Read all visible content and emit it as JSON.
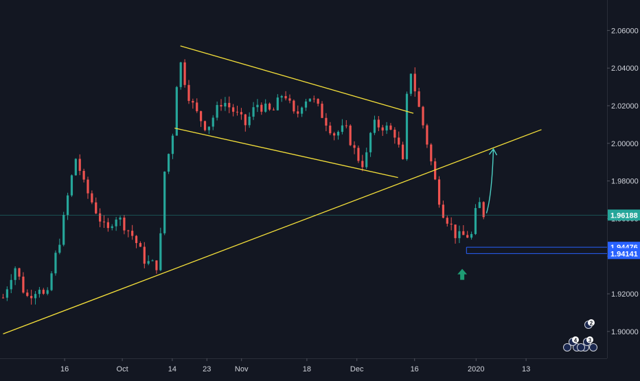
{
  "chart_data": {
    "type": "candlestick",
    "title": "",
    "xlabel": "",
    "ylabel": "",
    "ylim": [
      1.8857,
      2.0762
    ],
    "y_ticks": [
      "1.90000",
      "1.92000",
      "1.94000",
      "1.96000",
      "1.98000",
      "2.00000",
      "2.02000",
      "2.04000",
      "2.06000"
    ],
    "x_ticks": [
      {
        "label": "16",
        "day": 16
      },
      {
        "label": "Oct",
        "day": 31
      },
      {
        "label": "14",
        "day": 44
      },
      {
        "label": "23",
        "day": 53
      },
      {
        "label": "Nov",
        "day": 62
      },
      {
        "label": "18",
        "day": 79
      },
      {
        "label": "Dec",
        "day": 92
      },
      {
        "label": "16",
        "day": 107
      },
      {
        "label": "2020",
        "day": 123
      },
      {
        "label": "13",
        "day": 136
      }
    ],
    "x_range_days": [
      0,
      140
    ],
    "grid": false,
    "price_markers": [
      {
        "label": "1.96188",
        "value": 1.96188,
        "color": "#26a69a"
      },
      {
        "label": "1.94476",
        "value": 1.94476,
        "color": "#2962ff"
      },
      {
        "label": "1.94141",
        "value": 1.94141,
        "color": "#2962ff"
      }
    ],
    "trendlines": [
      {
        "name": "rising-support",
        "from": [
          0,
          1.8987
        ],
        "to": [
          140,
          2.0073
        ]
      },
      {
        "name": "channel-upper",
        "from": [
          46.1,
          2.0518
        ],
        "to": [
          106.7,
          2.016
        ]
      },
      {
        "name": "channel-lower",
        "from": [
          44.6,
          2.0081
        ],
        "to": [
          102.7,
          1.9818
        ]
      }
    ],
    "projection_arrow": {
      "from": [
        125.7,
        1.9628
      ],
      "to": [
        127.5,
        1.997
      ]
    },
    "up_arrow_marker": {
      "day": 119.4,
      "value": 1.93
    },
    "event_badges": [
      "2",
      "4",
      "3"
    ],
    "colors": {
      "up": "#26a69a",
      "down": "#ef5350",
      "trendline": "#f5e03a",
      "arrow": "#4dd0c5",
      "background": "#131722",
      "axis_text": "#d1d4dc"
    },
    "path_keypoints": [
      [
        0,
        1.918
      ],
      [
        3,
        1.935
      ],
      [
        6,
        1.918
      ],
      [
        10,
        1.925
      ],
      [
        11,
        1.913
      ],
      [
        13,
        1.935
      ],
      [
        15,
        1.951
      ],
      [
        17,
        1.974
      ],
      [
        19,
        1.993
      ],
      [
        21,
        1.978
      ],
      [
        24,
        1.965
      ],
      [
        27,
        1.952
      ],
      [
        29,
        1.962
      ],
      [
        31,
        1.958
      ],
      [
        34,
        1.95
      ],
      [
        37,
        1.937
      ],
      [
        40,
        1.935
      ],
      [
        41,
        1.951
      ],
      [
        42,
        1.985
      ],
      [
        44,
        2.003
      ],
      [
        45,
        2.03
      ],
      [
        46,
        2.044
      ],
      [
        48,
        2.027
      ],
      [
        50,
        2.017
      ],
      [
        53,
        2.008
      ],
      [
        57,
        2.023
      ],
      [
        60,
        2.017
      ],
      [
        63,
        2.01
      ],
      [
        66,
        2.021
      ],
      [
        70,
        2.016
      ],
      [
        73,
        2.028
      ],
      [
        76,
        2.013
      ],
      [
        78,
        2.023
      ],
      [
        80,
        2.025
      ],
      [
        83,
        2.015
      ],
      [
        86,
        2.005
      ],
      [
        89,
        2.008
      ],
      [
        92,
        1.993
      ],
      [
        94,
        1.988
      ],
      [
        96,
        2.01
      ],
      [
        99,
        2.009
      ],
      [
        102,
        2.005
      ],
      [
        104,
        1.989
      ],
      [
        105,
        2.024
      ],
      [
        106,
        2.039
      ],
      [
        108,
        2.02
      ],
      [
        110,
        2.003
      ],
      [
        112,
        1.983
      ],
      [
        114,
        1.965
      ],
      [
        116,
        1.958
      ],
      [
        118,
        1.95
      ],
      [
        120,
        1.951
      ],
      [
        122,
        1.951
      ],
      [
        123,
        1.965
      ],
      [
        124,
        1.968
      ],
      [
        125,
        1.962
      ]
    ]
  }
}
